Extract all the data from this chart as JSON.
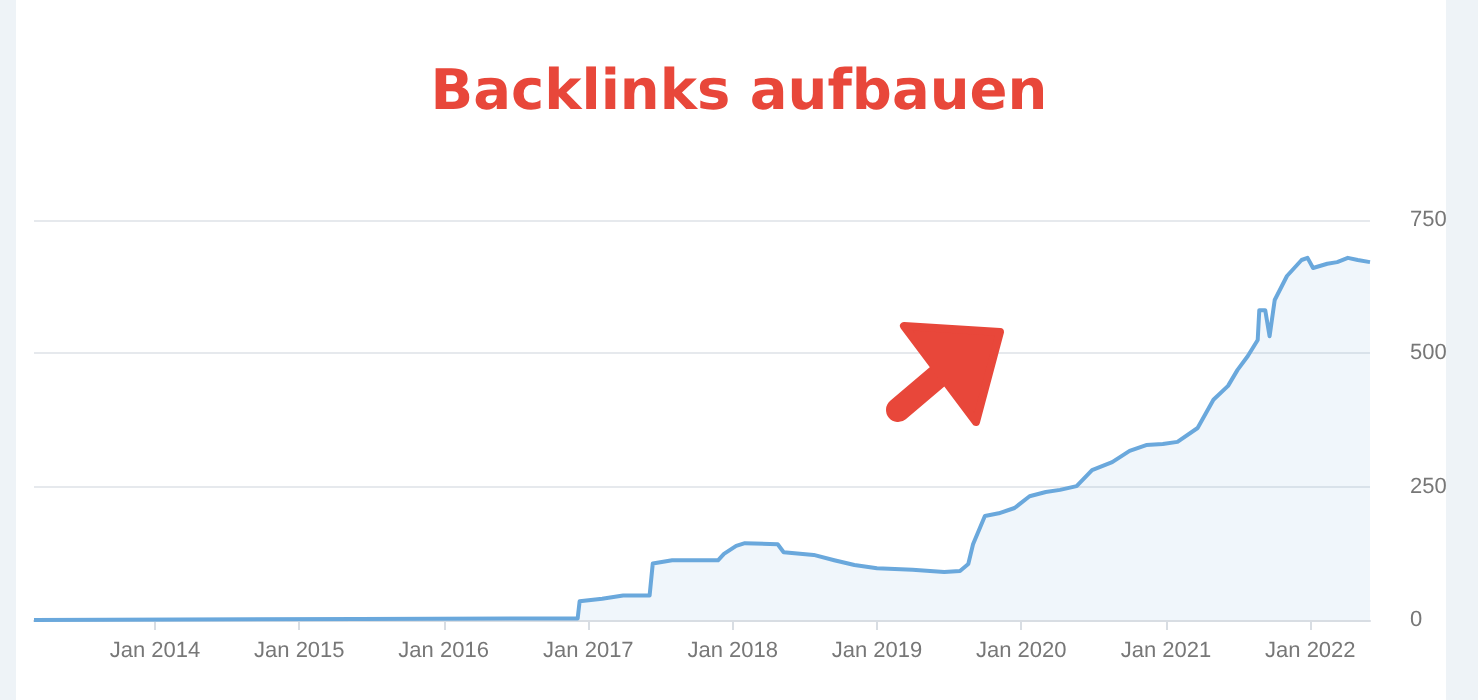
{
  "chart_data": {
    "type": "area",
    "title": "Backlinks aufbauen",
    "x": [
      "2013-03-01",
      "2015-06-01",
      "2016-12-05",
      "2016-12-10",
      "2017-02-05",
      "2017-03-30",
      "2017-06-05",
      "2017-06-13",
      "2017-08-01",
      "2017-11-25",
      "2017-12-10",
      "2018-01-10",
      "2018-02-01",
      "2018-04-25",
      "2018-05-10",
      "2018-07-25",
      "2018-09-15",
      "2018-11-05",
      "2019-01-01",
      "2019-04-01",
      "2019-06-20",
      "2019-07-30",
      "2019-08-20",
      "2019-09-01",
      "2019-10-01",
      "2019-11-05",
      "2019-12-15",
      "2020-01-22",
      "2020-03-03",
      "2020-04-08",
      "2020-05-20",
      "2020-06-28",
      "2020-08-18",
      "2020-10-01",
      "2020-11-12",
      "2020-12-24",
      "2021-01-30",
      "2021-03-22",
      "2021-05-01",
      "2021-06-07",
      "2021-07-01",
      "2021-07-27",
      "2021-08-21",
      "2021-08-25",
      "2021-09-09",
      "2021-09-20",
      "2021-10-03",
      "2021-11-03",
      "2021-12-10",
      "2021-12-25",
      "2022-01-08",
      "2022-02-13",
      "2022-03-10",
      "2022-04-06",
      "2022-05-01",
      "2022-06-01"
    ],
    "series": [
      {
        "color": "#6aa8dc",
        "values": [
          0,
          2,
          3,
          35,
          40,
          46,
          46,
          106,
          112,
          112,
          124,
          139,
          144,
          142,
          127,
          122,
          112,
          103,
          97,
          94,
          90,
          92,
          105,
          142,
          195,
          200,
          210,
          232,
          240,
          244,
          251,
          281,
          296,
          317,
          328,
          330,
          334,
          360,
          413,
          439,
          469,
          495,
          525,
          581,
          581,
          532,
          600,
          645,
          675,
          679,
          660,
          668,
          671,
          679,
          675,
          671
        ]
      }
    ],
    "xlim": [
      "2013-03-01",
      "2022-06-01"
    ],
    "xticks": [
      {
        "value": "2014-01-01",
        "label": "Jan 2014"
      },
      {
        "value": "2015-01-01",
        "label": "Jan 2015"
      },
      {
        "value": "2016-01-01",
        "label": "Jan 2016"
      },
      {
        "value": "2017-01-01",
        "label": "Jan 2017"
      },
      {
        "value": "2018-01-01",
        "label": "Jan 2018"
      },
      {
        "value": "2019-01-01",
        "label": "Jan 2019"
      },
      {
        "value": "2020-01-01",
        "label": "Jan 2020"
      },
      {
        "value": "2021-01-01",
        "label": "Jan 2021"
      },
      {
        "value": "2022-01-01",
        "label": "Jan 2022"
      }
    ],
    "ylim": [
      0,
      750
    ],
    "yticks": [
      0,
      250,
      500,
      750
    ],
    "grid": "y",
    "marker": "none",
    "line_style": "solid"
  }
}
